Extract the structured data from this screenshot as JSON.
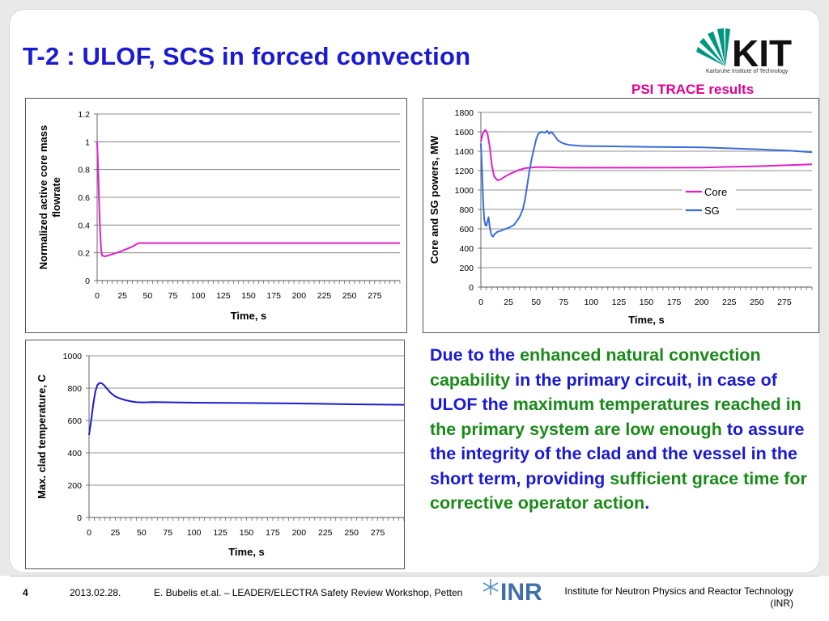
{
  "header": {
    "title": "T-2 : ULOF, SCS in forced convection",
    "subtitle": "PSI TRACE results",
    "logo_text": "KIT",
    "logo_subtitle": "Karlsruhe Institute of Technology"
  },
  "body_text": [
    {
      "text": "Due to the ",
      "color": "blue"
    },
    {
      "text": "enhanced natural convection capability",
      "color": "green"
    },
    {
      "text": " in the primary circuit, in case of ULOF the ",
      "color": "blue"
    },
    {
      "text": "maximum temperatures reached in the primary system are low enough",
      "color": "green"
    },
    {
      "text": " to assure the integrity of the clad and the vessel in the short term, providing ",
      "color": "blue"
    },
    {
      "text": "sufficient grace time for corrective operator action",
      "color": "green"
    },
    {
      "text": ".",
      "color": "blue"
    }
  ],
  "footer": {
    "page": "4",
    "date": "2013.02.28.",
    "event": "E. Bubelis et.al. – LEADER/ELECTRA Safety Review Workshop, Petten",
    "inr_logo": "INR",
    "institute": "Institute for Neutron Physics and Reactor Technology (INR)"
  },
  "colors": {
    "title": "#1a1ad2",
    "subtitle": "#e0008c",
    "core": "#e020c8",
    "sg": "#3a6cd8",
    "clad": "#1a1ad2",
    "green_text": "#1a8a1a"
  },
  "chart_data": [
    {
      "id": "flow",
      "type": "line",
      "xlabel": "Time, s",
      "ylabel": "Normalized active core mass flowrate",
      "xlim": [
        0,
        300
      ],
      "ylim": [
        0,
        1.2
      ],
      "xticks": [
        0,
        25,
        50,
        75,
        100,
        125,
        150,
        175,
        200,
        225,
        250,
        275
      ],
      "yticks": [
        0,
        0.2,
        0.4,
        0.6,
        0.8,
        1,
        1.2
      ],
      "ytick_labels": [
        "0",
        "0.2",
        "0.4",
        "0.6",
        "0.8",
        "1",
        "1.2"
      ],
      "grid": true,
      "series": [
        {
          "color": "#e020c8",
          "x": [
            0,
            1,
            2,
            3,
            4,
            5,
            8,
            15,
            25,
            35,
            41,
            60,
            100,
            150,
            200,
            250,
            300
          ],
          "y": [
            1.0,
            0.8,
            0.55,
            0.35,
            0.22,
            0.18,
            0.175,
            0.19,
            0.215,
            0.245,
            0.27,
            0.27,
            0.27,
            0.27,
            0.27,
            0.27,
            0.27
          ]
        }
      ]
    },
    {
      "id": "power",
      "type": "line",
      "xlabel": "Time, s",
      "ylabel": "Core and SG powers, MW",
      "xlim": [
        0,
        300
      ],
      "ylim": [
        0,
        1800
      ],
      "xticks": [
        0,
        25,
        50,
        75,
        100,
        125,
        150,
        175,
        200,
        225,
        250,
        275
      ],
      "yticks": [
        0,
        200,
        400,
        600,
        800,
        1000,
        1200,
        1400,
        1600,
        1800
      ],
      "ytick_labels": [
        "0",
        "200",
        "400",
        "600",
        "800",
        "1000",
        "1200",
        "1400",
        "1600",
        "1800"
      ],
      "grid": true,
      "legend": "center-right",
      "series": [
        {
          "name": "Core",
          "color": "#e020c8",
          "x": [
            0,
            2,
            4,
            6,
            8,
            10,
            12,
            15,
            18,
            22,
            27,
            33,
            40,
            50,
            60,
            70,
            80,
            100,
            150,
            200,
            250,
            300
          ],
          "y": [
            1500,
            1590,
            1620,
            1580,
            1450,
            1250,
            1140,
            1100,
            1110,
            1140,
            1170,
            1200,
            1225,
            1235,
            1235,
            1232,
            1230,
            1230,
            1230,
            1232,
            1245,
            1265
          ]
        },
        {
          "name": "SG",
          "color": "#3a6cd8",
          "x": [
            0,
            1,
            2,
            3,
            4,
            5,
            6,
            7,
            8,
            9,
            10,
            11,
            12,
            13,
            14,
            15,
            17,
            20,
            25,
            30,
            35,
            38,
            40,
            42,
            44,
            46,
            48,
            50,
            52,
            55,
            58,
            60,
            62,
            64,
            66,
            68,
            70,
            73,
            76,
            80,
            85,
            90,
            100,
            120,
            150,
            200,
            250,
            280,
            300
          ],
          "y": [
            1480,
            1200,
            900,
            700,
            640,
            630,
            680,
            720,
            620,
            560,
            530,
            520,
            540,
            550,
            560,
            570,
            575,
            590,
            610,
            640,
            720,
            800,
            900,
            1050,
            1200,
            1320,
            1420,
            1520,
            1580,
            1600,
            1590,
            1610,
            1580,
            1600,
            1570,
            1540,
            1510,
            1490,
            1475,
            1465,
            1460,
            1455,
            1452,
            1450,
            1445,
            1440,
            1420,
            1405,
            1390
          ]
        }
      ]
    },
    {
      "id": "clad",
      "type": "line",
      "xlabel": "Time, s",
      "ylabel": "Max. clad temperature, C",
      "xlim": [
        0,
        300
      ],
      "ylim": [
        0,
        1000
      ],
      "xticks": [
        0,
        25,
        50,
        75,
        100,
        125,
        150,
        175,
        200,
        225,
        250,
        275
      ],
      "yticks": [
        0,
        200,
        400,
        600,
        800,
        1000
      ],
      "ytick_labels": [
        "0",
        "200",
        "400",
        "600",
        "800",
        "1000"
      ],
      "grid": true,
      "series": [
        {
          "color": "#1a1ad2",
          "x": [
            0,
            2,
            4,
            6,
            8,
            10,
            12,
            14,
            16,
            18,
            20,
            23,
            26,
            30,
            35,
            40,
            45,
            50,
            55,
            60,
            80,
            100,
            150,
            200,
            250,
            300
          ],
          "y": [
            510,
            600,
            700,
            780,
            820,
            832,
            830,
            820,
            805,
            790,
            775,
            758,
            745,
            735,
            725,
            718,
            713,
            712,
            712,
            714,
            712,
            710,
            708,
            705,
            700,
            697
          ]
        }
      ]
    }
  ]
}
